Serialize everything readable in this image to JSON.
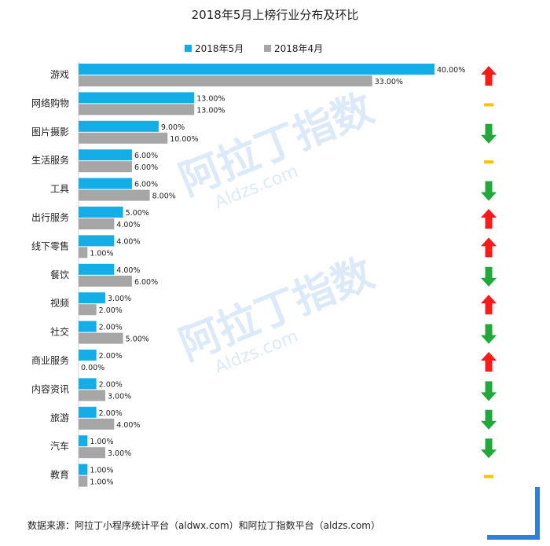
{
  "chart_data": {
    "type": "bar",
    "orientation": "horizontal",
    "title": "2018年5月上榜行业分布及环比",
    "legend_position": "top",
    "categories": [
      "游戏",
      "网络购物",
      "图片摄影",
      "生活服务",
      "工具",
      "出行服务",
      "线下零售",
      "餐饮",
      "视频",
      "社交",
      "商业服务",
      "内容资讯",
      "旅游",
      "汽车",
      "教育"
    ],
    "series": [
      {
        "name": "2018年5月",
        "color": "#13aee8",
        "values": [
          40,
          13,
          9,
          6,
          6,
          5,
          4,
          4,
          3,
          2,
          2,
          2,
          2,
          1,
          1
        ],
        "labels": [
          "40.00%",
          "13.00%",
          "9.00%",
          "6.00%",
          "6.00%",
          "5.00%",
          "4.00%",
          "4.00%",
          "3.00%",
          "2.00%",
          "2.00%",
          "2.00%",
          "2.00%",
          "1.00%",
          "1.00%"
        ]
      },
      {
        "name": "2018年4月",
        "color": "#a6a6a6",
        "values": [
          33,
          13,
          10,
          6,
          8,
          4,
          1,
          6,
          2,
          5,
          0,
          3,
          4,
          3,
          1
        ],
        "labels": [
          "33.00%",
          "13.00%",
          "10.00%",
          "6.00%",
          "8.00%",
          "4.00%",
          "1.00%",
          "6.00%",
          "2.00%",
          "5.00%",
          "0.00%",
          "3.00%",
          "4.00%",
          "3.00%",
          "1.00%"
        ]
      }
    ],
    "trend": [
      "up",
      "flat",
      "down",
      "flat",
      "down",
      "up",
      "up",
      "down",
      "up",
      "down",
      "up",
      "down",
      "down",
      "down",
      "flat"
    ],
    "trend_colors": {
      "up": "#ff1a1a",
      "down": "#22a83a",
      "flat": "#ffc000"
    },
    "xlim": [
      0,
      40
    ]
  },
  "watermark": {
    "brand": "阿拉丁指数",
    "domain": "Aldzs.com"
  },
  "footer": "数据来源：阿拉丁小程序统计平台（aldwx.com）和阿拉丁指数平台（aldzs.com）",
  "accent_color": "#2f7fe0"
}
